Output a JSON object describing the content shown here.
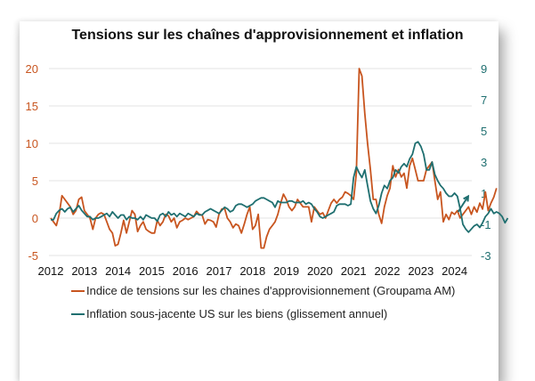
{
  "chart_data": {
    "type": "line",
    "title": "Tensions sur les chaînes d'approvisionnement et inflation",
    "xlabel": "",
    "ylabel": "",
    "x_start": "2012-01",
    "x_frequency": "monthly",
    "x_ticks": [
      "2012",
      "2013",
      "2014",
      "2015",
      "2016",
      "2017",
      "2018",
      "2019",
      "2020",
      "2021",
      "2022",
      "2023",
      "2024"
    ],
    "y_left": {
      "ticks": [
        "20",
        "15",
        "10",
        "5",
        "0",
        "-5"
      ],
      "range": [
        -5,
        20
      ],
      "color": "#c8551f"
    },
    "y_right": {
      "ticks": [
        "9",
        "7",
        "5",
        "3",
        "1",
        "-1",
        "-3"
      ],
      "range": [
        -3,
        9
      ],
      "color": "#1f6f70"
    },
    "grid": true,
    "legend_position": "bottom",
    "series": [
      {
        "name": "Indice de tensions sur les chaines d'approvisionnement (Groupama AM)",
        "axis": "left",
        "color": "#c8551f",
        "values": [
          0,
          -0.5,
          -1,
          0.5,
          3,
          2.5,
          2,
          1.5,
          0.5,
          1,
          2.5,
          2.8,
          1,
          0.5,
          0,
          -1.5,
          0,
          0.5,
          0.7,
          0.5,
          -0.5,
          -1.5,
          -2,
          -3.7,
          -3.5,
          -2,
          -0.3,
          -2,
          -0.5,
          1,
          0.5,
          -1.8,
          -1,
          -0.5,
          -1.5,
          -1.8,
          -2,
          -2,
          -0.3,
          -1,
          -0.5,
          0.5,
          0.3,
          -0.5,
          0,
          -1.3,
          -0.5,
          -0.3,
          0,
          -0.2,
          0,
          0.2,
          0.9,
          0.5,
          0.4,
          -0.8,
          -0.2,
          -0.3,
          -0.5,
          -1.2,
          0.5,
          1.2,
          1.3,
          0,
          -0.5,
          -1.3,
          -0.8,
          -1,
          -2,
          -0.8,
          0.5,
          1.5,
          -1.5,
          -1,
          0.5,
          -4,
          -4,
          -2.5,
          -1.5,
          -1,
          -0.5,
          0.5,
          2,
          3.2,
          2.5,
          1.5,
          1,
          1.5,
          2.5,
          2,
          1.5,
          1.5,
          1.5,
          -0.5,
          1.5,
          1,
          0.5,
          0.7,
          0,
          1,
          2,
          2.5,
          2,
          2.5,
          2.8,
          3.5,
          3.3,
          3,
          2.5,
          6,
          20,
          19,
          14,
          10,
          6.5,
          2.5,
          2.5,
          0.5,
          -0.7,
          1.5,
          3,
          4,
          7,
          5.5,
          6.5,
          5.5,
          6,
          4,
          7,
          8,
          6.5,
          5,
          5,
          5,
          6.5,
          7,
          7.5,
          5,
          2.5,
          3.5,
          -0.5,
          0.5,
          -0.2,
          0.8,
          0.5,
          1,
          0,
          0.5,
          1,
          1.5,
          0.5,
          1.5,
          0.8,
          2,
          1.2,
          3.5,
          1,
          2,
          2.8,
          4
        ]
      },
      {
        "name": "Inflation sous-jacente US sur les biens (glissement annuel)",
        "axis": "right",
        "color": "#1f6f70",
        "values": [
          -0.7,
          -0.7,
          -0.3,
          -0.1,
          0,
          -0.2,
          0,
          0.1,
          -0.2,
          0,
          0.2,
          -0.1,
          -0.3,
          -0.5,
          -0.5,
          -0.7,
          -0.6,
          -0.6,
          -0.5,
          -0.4,
          -0.3,
          -0.5,
          -0.2,
          -0.4,
          -0.6,
          -0.4,
          -0.4,
          -0.7,
          -0.5,
          -0.6,
          -0.6,
          -0.7,
          -0.5,
          -0.7,
          -0.4,
          -0.5,
          -0.6,
          -0.6,
          -0.8,
          -0.4,
          -0.3,
          -0.5,
          -0.2,
          -0.4,
          -0.3,
          -0.5,
          -0.3,
          -0.4,
          -0.5,
          -0.3,
          -0.4,
          -0.5,
          -0.3,
          -0.4,
          -0.4,
          -0.2,
          -0.1,
          0,
          -0.1,
          -0.2,
          -0.3,
          -0.1,
          0.1,
          0,
          -0.2,
          -0.1,
          0.2,
          0.3,
          0.3,
          0.2,
          0.1,
          0.2,
          0.3,
          0.5,
          0.6,
          0.7,
          0.7,
          0.6,
          0.5,
          0.4,
          0.1,
          0.5,
          0.4,
          0.4,
          0.4,
          0.5,
          0.5,
          0.4,
          0.4,
          0.4,
          0.5,
          0.3,
          0.4,
          0.3,
          0,
          -0.2,
          -0.5,
          -0.6,
          -0.5,
          -0.4,
          -0.3,
          -0.2,
          0.2,
          0.3,
          0.3,
          0.3,
          0.2,
          0.3,
          2,
          2.7,
          2.3,
          2,
          2.5,
          1.5,
          0.5,
          0,
          -0.3,
          0.2,
          1,
          1.5,
          1.3,
          1.8,
          2,
          2.5,
          2.3,
          2.7,
          2.9,
          2.7,
          3.2,
          3.5,
          4.2,
          4.3,
          4,
          3.5,
          2.5,
          2.5,
          3,
          2.2,
          1.8,
          1.5,
          1.3,
          1,
          0.8,
          0.8,
          1,
          0.8,
          0,
          -1,
          -1.3,
          -1.5,
          -1.3,
          -1.1,
          -1,
          -1.2,
          -0.9,
          -0.5,
          -0.3,
          0,
          -0.3,
          -0.2,
          -0.3,
          -0.5,
          -0.9,
          -0.6
        ]
      }
    ],
    "annotations": [
      {
        "type": "arrow",
        "label": "",
        "series": "Inflation sous-jacente US sur les biens (glissement annuel)",
        "direction": "up",
        "from": [
          2024.0,
          -0.2
        ],
        "to": [
          2024.3,
          0.8
        ]
      }
    ]
  }
}
